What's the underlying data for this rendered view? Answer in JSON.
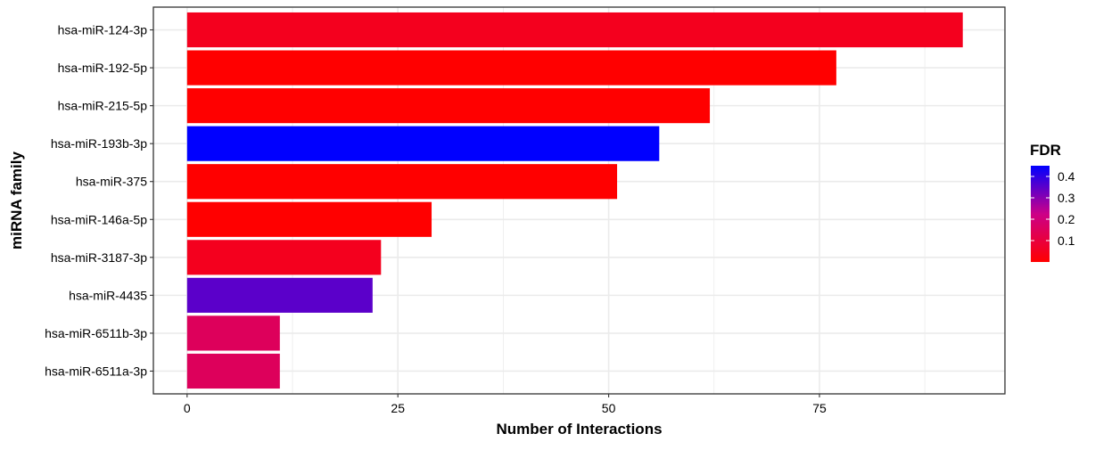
{
  "chart_data": {
    "type": "bar",
    "orientation": "horizontal",
    "categories": [
      "hsa-miR-124-3p",
      "hsa-miR-192-5p",
      "hsa-miR-215-5p",
      "hsa-miR-193b-3p",
      "hsa-miR-375",
      "hsa-miR-146a-5p",
      "hsa-miR-3187-3p",
      "hsa-miR-4435",
      "hsa-miR-6511b-3p",
      "hsa-miR-6511a-3p"
    ],
    "values": [
      92,
      77,
      62,
      56,
      51,
      29,
      23,
      22,
      11,
      11
    ],
    "fdr": [
      0.05,
      0.0,
      0.0,
      0.45,
      0.0,
      0.0,
      0.05,
      0.35,
      0.15,
      0.15
    ],
    "xlabel": "Number of Interactions",
    "ylabel": "miRNA family",
    "xlim": [
      -4,
      97
    ],
    "xticks": [
      0,
      25,
      50,
      75
    ],
    "xtick_labels": [
      "0",
      "25",
      "50",
      "75"
    ],
    "grid": true,
    "legend": {
      "title": "FDR",
      "position": "right",
      "range": [
        0.0,
        0.45
      ],
      "ticks": [
        0.1,
        0.2,
        0.3,
        0.4
      ],
      "tick_labels": [
        "0.1",
        "0.2",
        "0.3",
        "0.4"
      ],
      "colors": {
        "low": "#ff0000",
        "mid": "#cc0088",
        "high": "#0000ff"
      }
    }
  }
}
